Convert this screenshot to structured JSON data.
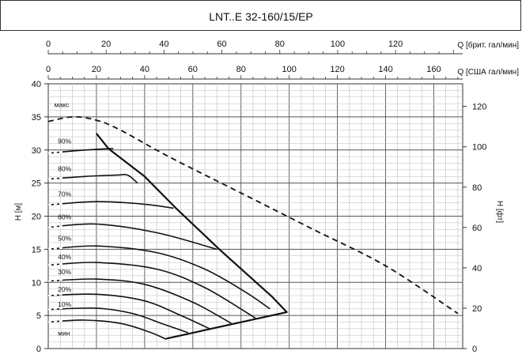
{
  "chart_data": {
    "type": "line",
    "title": "LNT..E 32-160/15/EP",
    "y_left": {
      "label": "H [м]",
      "range": [
        0,
        40
      ],
      "ticks": [
        0,
        5,
        10,
        15,
        20,
        25,
        30,
        35,
        40
      ]
    },
    "y_right": {
      "label": "H [фт]",
      "range": [
        0,
        131.23
      ],
      "ticks": [
        0,
        20,
        40,
        60,
        80,
        100,
        120
      ]
    },
    "x_bottom": {
      "label": "Q [США гал/мин]",
      "range": [
        0,
        172
      ],
      "ticks": [
        0,
        20,
        40,
        60,
        80,
        100,
        120,
        140,
        160
      ]
    },
    "x_top": {
      "label": "Q [брит. гал/мин]",
      "range": [
        0,
        143.2
      ],
      "ticks": [
        0,
        20,
        40,
        60,
        80,
        100,
        120
      ]
    },
    "grid": true,
    "max_curve": {
      "name": "макс",
      "points": [
        [
          0,
          34.3
        ],
        [
          10,
          35
        ],
        [
          20,
          34.5
        ],
        [
          30,
          33
        ],
        [
          50,
          29
        ],
        [
          80,
          23.5
        ],
        [
          110,
          18
        ],
        [
          140,
          12.5
        ],
        [
          170,
          5.3
        ]
      ]
    },
    "speed_curves": [
      {
        "name": "90%",
        "points": [
          [
            0,
            29.5
          ],
          [
            12,
            29.9
          ],
          [
            25,
            30.2
          ],
          [
            27,
            30.2
          ]
        ]
      },
      {
        "name": "80%",
        "points": [
          [
            0,
            25.6
          ],
          [
            15,
            26
          ],
          [
            28,
            26.2
          ],
          [
            33,
            26.2
          ],
          [
            37,
            25
          ]
        ]
      },
      {
        "name": "70%",
        "points": [
          [
            0,
            21.7
          ],
          [
            20,
            22.2
          ],
          [
            40,
            21.8
          ],
          [
            52,
            21.2
          ]
        ]
      },
      {
        "name": "60%",
        "points": [
          [
            0,
            18.3
          ],
          [
            20,
            18.8
          ],
          [
            45,
            17.5
          ],
          [
            70,
            15
          ]
        ]
      },
      {
        "name": "50%",
        "points": [
          [
            0,
            15
          ],
          [
            20,
            15.5
          ],
          [
            45,
            14.5
          ],
          [
            65,
            12
          ],
          [
            82,
            8.5
          ],
          [
            92,
            6
          ]
        ]
      },
      {
        "name": "40%",
        "points": [
          [
            0,
            12.6
          ],
          [
            20,
            13
          ],
          [
            45,
            12
          ],
          [
            65,
            9.2
          ],
          [
            86,
            4.6
          ]
        ]
      },
      {
        "name": "30%",
        "points": [
          [
            0,
            10.2
          ],
          [
            20,
            10.5
          ],
          [
            40,
            9.7
          ],
          [
            60,
            7
          ],
          [
            76,
            3.8
          ]
        ]
      },
      {
        "name": "20%",
        "points": [
          [
            0,
            8
          ],
          [
            20,
            8.2
          ],
          [
            40,
            7.2
          ],
          [
            55,
            5
          ],
          [
            67,
            3
          ]
        ]
      },
      {
        "name": "10%",
        "points": [
          [
            0,
            5.9
          ],
          [
            20,
            6.1
          ],
          [
            35,
            5.3
          ],
          [
            47,
            3.8
          ],
          [
            58,
            2.4
          ]
        ]
      },
      {
        "name": "мин",
        "points": [
          [
            0,
            4
          ],
          [
            15,
            4.3
          ],
          [
            30,
            3.8
          ],
          [
            42,
            2.5
          ],
          [
            49,
            1.4
          ]
        ]
      }
    ],
    "envelope": {
      "points": [
        [
          20,
          32.5
        ],
        [
          25,
          30.2
        ],
        [
          40,
          26
        ],
        [
          53,
          21.2
        ],
        [
          71,
          15
        ],
        [
          93,
          7.8
        ],
        [
          99,
          5.5
        ],
        [
          49,
          1.5
        ]
      ]
    }
  }
}
